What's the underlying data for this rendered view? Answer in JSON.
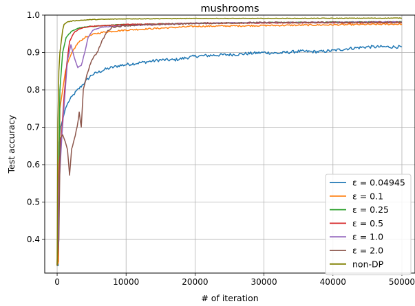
{
  "chart_data": {
    "type": "line",
    "title": "mushrooms",
    "xlabel": "# of iteration",
    "ylabel": "Test accuracy",
    "xlim": [
      -1800,
      52000
    ],
    "ylim": [
      0.31,
      1.0
    ],
    "xticks": [
      0,
      10000,
      20000,
      30000,
      40000,
      50000
    ],
    "yticks": [
      0.4,
      0.5,
      0.6,
      0.7,
      0.8,
      0.9,
      1.0
    ],
    "xtick_labels": [
      "0",
      "10000",
      "20000",
      "30000",
      "40000",
      "50000"
    ],
    "ytick_labels": [
      "0.4",
      "0.5",
      "0.6",
      "0.7",
      "0.8",
      "0.9",
      "1.0"
    ],
    "grid": true,
    "legend_position": "lower-right",
    "series": [
      {
        "name": "ε = 0.04945",
        "color": "#1f77b4",
        "noise": 0.004,
        "points": [
          [
            0,
            0.33
          ],
          [
            150,
            0.33
          ],
          [
            300,
            0.66
          ],
          [
            500,
            0.7
          ],
          [
            800,
            0.72
          ],
          [
            1200,
            0.75
          ],
          [
            1700,
            0.77
          ],
          [
            2500,
            0.79
          ],
          [
            3500,
            0.81
          ],
          [
            5000,
            0.84
          ],
          [
            7000,
            0.855
          ],
          [
            9000,
            0.865
          ],
          [
            11000,
            0.87
          ],
          [
            13000,
            0.875
          ],
          [
            15000,
            0.88
          ],
          [
            17000,
            0.88
          ],
          [
            20000,
            0.89
          ],
          [
            23000,
            0.893
          ],
          [
            26000,
            0.895
          ],
          [
            30000,
            0.9
          ],
          [
            32000,
            0.898
          ],
          [
            35000,
            0.903
          ],
          [
            38000,
            0.902
          ],
          [
            40000,
            0.905
          ],
          [
            42000,
            0.91
          ],
          [
            45000,
            0.915
          ],
          [
            48000,
            0.915
          ],
          [
            50000,
            0.915
          ]
        ]
      },
      {
        "name": "ε = 0.1",
        "color": "#ff7f0e",
        "noise": 0.002,
        "points": [
          [
            0,
            0.33
          ],
          [
            200,
            0.34
          ],
          [
            400,
            0.75
          ],
          [
            800,
            0.8
          ],
          [
            1200,
            0.85
          ],
          [
            1700,
            0.88
          ],
          [
            2300,
            0.905
          ],
          [
            3000,
            0.925
          ],
          [
            4000,
            0.94
          ],
          [
            5500,
            0.95
          ],
          [
            7000,
            0.955
          ],
          [
            10000,
            0.96
          ],
          [
            15000,
            0.965
          ],
          [
            20000,
            0.97
          ],
          [
            30000,
            0.972
          ],
          [
            40000,
            0.974
          ],
          [
            50000,
            0.976
          ]
        ]
      },
      {
        "name": "ε = 0.25",
        "color": "#2ca02c",
        "noise": 0.0012,
        "points": [
          [
            0,
            0.33
          ],
          [
            200,
            0.5
          ],
          [
            400,
            0.8
          ],
          [
            800,
            0.9
          ],
          [
            1300,
            0.94
          ],
          [
            2000,
            0.955
          ],
          [
            3000,
            0.965
          ],
          [
            5000,
            0.97
          ],
          [
            10000,
            0.975
          ],
          [
            20000,
            0.978
          ],
          [
            30000,
            0.98
          ],
          [
            50000,
            0.982
          ]
        ]
      },
      {
        "name": "ε = 0.5",
        "color": "#d62728",
        "noise": 0.001,
        "points": [
          [
            0,
            0.33
          ],
          [
            300,
            0.6
          ],
          [
            600,
            0.67
          ],
          [
            1000,
            0.78
          ],
          [
            1400,
            0.87
          ],
          [
            1800,
            0.93
          ],
          [
            2500,
            0.955
          ],
          [
            3500,
            0.965
          ],
          [
            5000,
            0.97
          ],
          [
            10000,
            0.975
          ],
          [
            20000,
            0.978
          ],
          [
            30000,
            0.979
          ],
          [
            50000,
            0.98
          ]
        ]
      },
      {
        "name": "ε = 1.0",
        "color": "#9467bd",
        "noise": 0.001,
        "points": [
          [
            0,
            0.33
          ],
          [
            300,
            0.55
          ],
          [
            700,
            0.68
          ],
          [
            1100,
            0.78
          ],
          [
            1500,
            0.88
          ],
          [
            2000,
            0.92
          ],
          [
            2500,
            0.885
          ],
          [
            3000,
            0.86
          ],
          [
            3500,
            0.865
          ],
          [
            4000,
            0.9
          ],
          [
            4500,
            0.94
          ],
          [
            5200,
            0.96
          ],
          [
            6500,
            0.968
          ],
          [
            10000,
            0.972
          ],
          [
            20000,
            0.978
          ],
          [
            30000,
            0.98
          ],
          [
            50000,
            0.982
          ]
        ]
      },
      {
        "name": "ε = 2.0",
        "color": "#8c564b",
        "noise": 0.002,
        "points": [
          [
            0,
            0.33
          ],
          [
            250,
            0.4
          ],
          [
            450,
            0.67
          ],
          [
            800,
            0.68
          ],
          [
            1200,
            0.66
          ],
          [
            1500,
            0.64
          ],
          [
            1800,
            0.57
          ],
          [
            2100,
            0.64
          ],
          [
            2500,
            0.67
          ],
          [
            2900,
            0.7
          ],
          [
            3200,
            0.74
          ],
          [
            3500,
            0.7
          ],
          [
            3800,
            0.8
          ],
          [
            4300,
            0.84
          ],
          [
            5000,
            0.88
          ],
          [
            5800,
            0.9
          ],
          [
            6500,
            0.93
          ],
          [
            7200,
            0.955
          ],
          [
            8000,
            0.968
          ],
          [
            10000,
            0.972
          ],
          [
            20000,
            0.978
          ],
          [
            30000,
            0.98
          ],
          [
            50000,
            0.981
          ]
        ]
      },
      {
        "name": "non-DP",
        "color": "#808000",
        "noise": 0.0008,
        "points": [
          [
            0,
            0.33
          ],
          [
            100,
            0.7
          ],
          [
            250,
            0.85
          ],
          [
            400,
            0.9
          ],
          [
            600,
            0.93
          ],
          [
            800,
            0.96
          ],
          [
            1000,
            0.975
          ],
          [
            1500,
            0.982
          ],
          [
            2500,
            0.985
          ],
          [
            5000,
            0.988
          ],
          [
            10000,
            0.99
          ],
          [
            20000,
            0.991
          ],
          [
            30000,
            0.991
          ],
          [
            50000,
            0.992
          ]
        ]
      }
    ]
  }
}
